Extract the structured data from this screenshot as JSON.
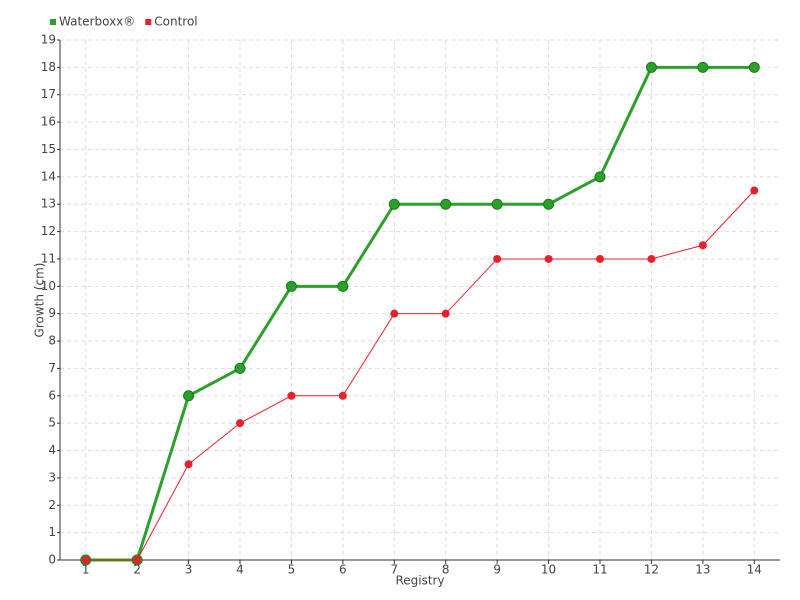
{
  "chart_data": {
    "type": "line",
    "x_label": "Registry",
    "y_label": "Growth (cm)",
    "categories": [
      "1",
      "2",
      "3",
      "4",
      "5",
      "6",
      "7",
      "8",
      "9",
      "10",
      "11",
      "12",
      "13",
      "14"
    ],
    "series": [
      {
        "name": "Waterboxx®",
        "color": "#2ca02c",
        "values": [
          0,
          0,
          6,
          7,
          10,
          10,
          13,
          13,
          13,
          13,
          14,
          18,
          18,
          18
        ]
      },
      {
        "name": "Control",
        "color": "#e8202a",
        "values": [
          0,
          0,
          3.5,
          5,
          6,
          6,
          9,
          9,
          11,
          11,
          11,
          11,
          11.5,
          13.5
        ]
      }
    ],
    "ylim": [
      0,
      19
    ],
    "yticks": [
      0,
      1,
      2,
      3,
      4,
      5,
      6,
      7,
      8,
      9,
      10,
      11,
      12,
      13,
      14,
      15,
      16,
      17,
      18,
      19
    ],
    "grid": true,
    "legend": "top-left"
  }
}
